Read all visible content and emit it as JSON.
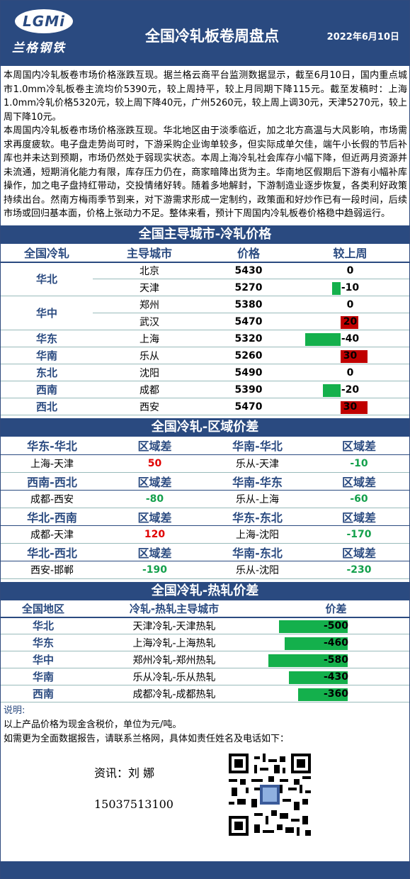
{
  "header": {
    "logo_mark": "LGMi",
    "logo_text": "兰格钢铁",
    "title": "全国冷轧板卷周盘点",
    "date": "2022年6月10日"
  },
  "summary": {
    "p1": "本周国内冷轧板卷市场价格涨跌互现。据兰格云商平台监测数据显示，截至6月10日，国内重点城市1.0mm冷轧板卷主流均价5390元，较上周持平，较上月同期下降115元。截至发稿时：上海1.0mm冷轧价格5320元，较上周下降40元，广州5260元，较上周上调30元，天津5270元，较上周下降10元。",
    "p2": "本周国内冷轧板卷市场价格涨跌互现。华北地区由于淡季临近，加之北方高温与大风影响，市场需求再度疲软。电子盘走势尚可时，下游采购企业询单较多，但实际成单欠佳，端午小长假的节后补库也并未达到预期，市场仍然处于弱现实状态。本周上海冷轧社会库存小幅下降，但近两月资源并未流通，短期消化能力有限，库存压力仍在，商家暗降出货为主。华南地区假期后下游有小幅补库操作，加之电子盘持红带动，交投情绪好转。随着多地解封，下游制造业逐步恢复，各类利好政策持续出台。然南方梅雨季节到来，对下游需求形成一定制约，政策面和好炒作已有一段时间，后续市场或回归基本面，价格上张动力不足。整体来看，预计下周国内冷轧板卷价格稳中趋弱运行。"
  },
  "section1": {
    "title": "全国主导城市-冷轧价格",
    "headers": [
      "全国冷轧",
      "主导城市",
      "价格",
      "较上周"
    ],
    "rows": [
      {
        "region": "华北",
        "city": "北京",
        "price": "5430",
        "change": 0
      },
      {
        "region": "",
        "city": "天津",
        "price": "5270",
        "change": -10
      },
      {
        "region": "华中",
        "city": "郑州",
        "price": "5380",
        "change": 0
      },
      {
        "region": "",
        "city": "武汉",
        "price": "5470",
        "change": 20
      },
      {
        "region": "华东",
        "city": "上海",
        "price": "5320",
        "change": -40
      },
      {
        "region": "华南",
        "city": "乐从",
        "price": "5260",
        "change": 30
      },
      {
        "region": "东北",
        "city": "沈阳",
        "price": "5490",
        "change": 0
      },
      {
        "region": "西南",
        "city": "成都",
        "price": "5390",
        "change": -20
      },
      {
        "region": "西北",
        "city": "西安",
        "price": "5470",
        "change": 30
      }
    ]
  },
  "section2": {
    "title": "全国冷轧-区域价差",
    "blocks": [
      {
        "left_head": "华东-华北",
        "left_diff_head": "区域差",
        "left_pair": "上海-天津",
        "left_val": "50",
        "left_pos": true,
        "right_head": "华南-华北",
        "right_diff_head": "区域差",
        "right_pair": "乐从-天津",
        "right_val": "-10",
        "right_pos": false
      },
      {
        "left_head": "西南-西北",
        "left_diff_head": "区域差",
        "left_pair": "成都-西安",
        "left_val": "-80",
        "left_pos": false,
        "right_head": "华南-华东",
        "right_diff_head": "区域差",
        "right_pair": "乐从-上海",
        "right_val": "-60",
        "right_pos": false
      },
      {
        "left_head": "华北-西南",
        "left_diff_head": "区域差",
        "left_pair": "成都-天津",
        "left_val": "120",
        "left_pos": true,
        "right_head": "华东-东北",
        "right_diff_head": "区域差",
        "right_pair": "上海-沈阳",
        "right_val": "-170",
        "right_pos": false
      },
      {
        "left_head": "华北-西北",
        "left_diff_head": "区域差",
        "left_pair": "西安-邯郸",
        "left_val": "-190",
        "left_pos": false,
        "right_head": "华南-东北",
        "right_diff_head": "区域差",
        "right_pair": "乐从-沈阳",
        "right_val": "-230",
        "right_pos": false
      }
    ]
  },
  "section3": {
    "title": "全国冷轧-热轧价差",
    "headers": [
      "全国地区",
      "冷轧-热轧主导城市",
      "价差"
    ],
    "rows": [
      {
        "region": "华北",
        "pair": "天津冷轧-天津热轧",
        "diff": -500
      },
      {
        "region": "华东",
        "pair": "上海冷轧-上海热轧",
        "diff": -460
      },
      {
        "region": "华中",
        "pair": "郑州冷轧-郑州热轧",
        "diff": -580
      },
      {
        "region": "华南",
        "pair": "乐从冷轧-乐从热轧",
        "diff": -430
      },
      {
        "region": "西南",
        "pair": "成都冷轧-成都热轧",
        "diff": -360
      }
    ]
  },
  "notes": {
    "label": "说明:",
    "line1": "以上产品价格为现金含税价，单位为元/吨。",
    "line2": "如需更为全面数据报告，请联系兰格网，具体如责任姓名及电话如下："
  },
  "contact": {
    "name": "资讯：刘 娜",
    "phone": "15037513100"
  },
  "colors": {
    "brand": "#2a4a80",
    "up": "#c00000",
    "down": "#14b04c"
  }
}
